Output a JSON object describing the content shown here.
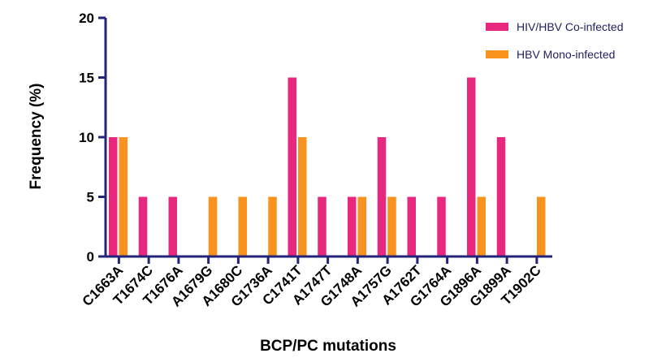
{
  "chart_data": {
    "type": "bar",
    "xlabel": "BCP/PC mutations",
    "ylabel": "Frequency (%)",
    "ylim": [
      0,
      20
    ],
    "yticks": [
      0,
      5,
      10,
      15,
      20
    ],
    "grid": false,
    "legend_position": "top-right",
    "categories": [
      "C1663A",
      "T1674C",
      "T1676A",
      "A1679G",
      "A1680C",
      "G1736A",
      "C1741T",
      "A1747T",
      "G1748A",
      "A1757G",
      "A1762T",
      "G1764A",
      "G1896A",
      "G1899A",
      "T1902C"
    ],
    "series": [
      {
        "name": "HIV/HBV Co-infected",
        "color": "#e8287f",
        "values": [
          10,
          5,
          5,
          0,
          0,
          0,
          15,
          5,
          5,
          10,
          5,
          5,
          15,
          10,
          0
        ]
      },
      {
        "name": "HBV Mono-infected",
        "color": "#f7931e",
        "values": [
          10,
          0,
          0,
          5,
          5,
          5,
          10,
          0,
          5,
          5,
          0,
          0,
          5,
          0,
          5
        ]
      }
    ],
    "axis_color": "#23237a"
  }
}
